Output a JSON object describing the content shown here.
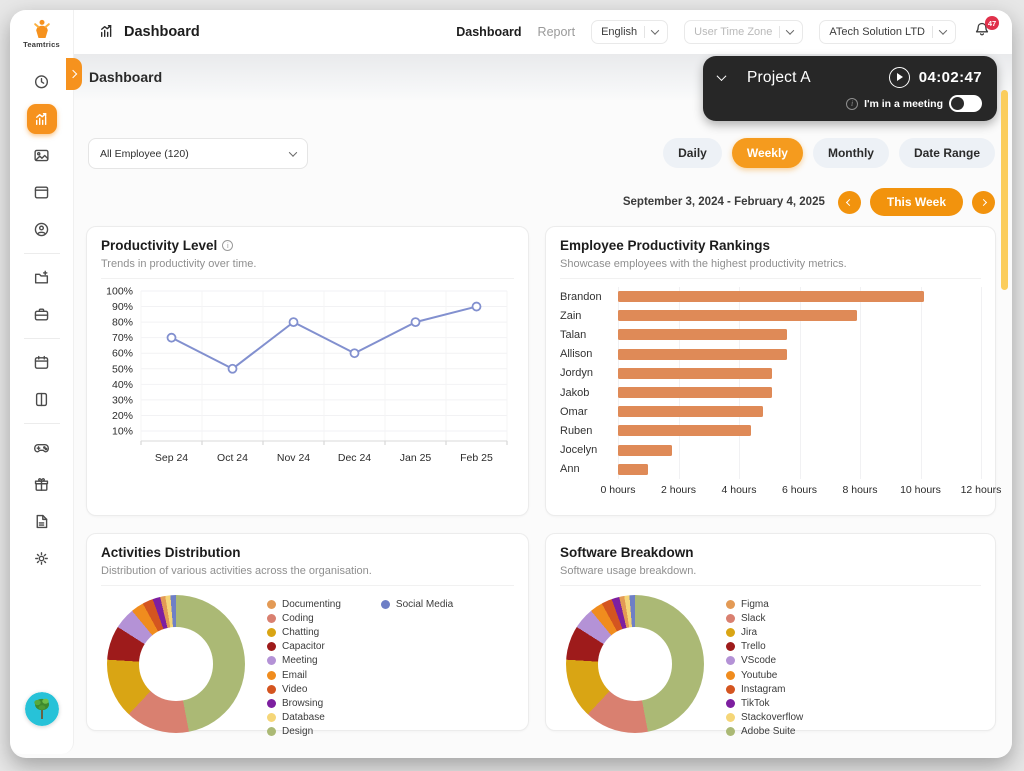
{
  "colors": {
    "accent": "#F6921E",
    "accent_dark": "#F2930D",
    "scrollbar": "#FBCD5C",
    "widget_bg": "#272727",
    "badge": "#E0314B"
  },
  "sidebar": {
    "logo": "Teamtrics",
    "items": [
      {
        "icon": "clock",
        "name": "time-tracking"
      },
      {
        "icon": "chart",
        "name": "dashboard",
        "active": true
      },
      {
        "icon": "image",
        "name": "screenshots"
      },
      {
        "icon": "window",
        "name": "apps-websites"
      },
      {
        "icon": "user",
        "name": "employees"
      },
      {
        "divider": true
      },
      {
        "icon": "folder-plus",
        "name": "projects"
      },
      {
        "icon": "briefcase",
        "name": "workspace"
      },
      {
        "divider": true
      },
      {
        "icon": "calendar",
        "name": "attendance"
      },
      {
        "icon": "tablet",
        "name": "devices"
      },
      {
        "divider": true
      },
      {
        "icon": "gamepad",
        "name": "games"
      },
      {
        "icon": "gift",
        "name": "rewards"
      },
      {
        "icon": "file",
        "name": "documents"
      },
      {
        "icon": "gear",
        "name": "settings"
      }
    ]
  },
  "header": {
    "app_title": "Dashboard",
    "nav_dashboard": "Dashboard",
    "nav_report": "Report",
    "language": "English",
    "timezone_placeholder": "User Time Zone",
    "company": "ATech Solution LTD",
    "notifications": "47"
  },
  "page": {
    "title": "Dashboard"
  },
  "timer": {
    "project": "Project A",
    "time": "04:02:47",
    "meeting": "I'm in a meeting",
    "meeting_on": true
  },
  "filters": {
    "employee": "All Employee (120)",
    "range_buttons": [
      {
        "label": "Daily",
        "active": false
      },
      {
        "label": "Weekly",
        "active": true
      },
      {
        "label": "Monthly",
        "active": false
      },
      {
        "label": "Date Range",
        "active": false
      }
    ],
    "date_range": "September 3, 2024 - February 4, 2025",
    "this_week": "This Week"
  },
  "panels": {
    "productivity": {
      "title": "Productivity Level",
      "subtitle": "Trends in productivity over time."
    },
    "rankings": {
      "title": "Employee Productivity Rankings",
      "subtitle": "Showcase employees with the highest productivity metrics."
    },
    "activities": {
      "title": "Activities Distribution",
      "subtitle": "Distribution of various activities across the organisation."
    },
    "software": {
      "title": "Software Breakdown",
      "subtitle": "Software usage breakdown."
    }
  },
  "chart_data": [
    {
      "id": "productivity_line",
      "type": "line",
      "title": "Productivity Level",
      "x": [
        "Sep 24",
        "Oct 24",
        "Nov 24",
        "Dec 24",
        "Jan 25",
        "Feb 25"
      ],
      "values": [
        70,
        50,
        80,
        60,
        80,
        90
      ],
      "yticks": [
        "100%",
        "90%",
        "80%",
        "70%",
        "60%",
        "50%",
        "40%",
        "30%",
        "20%",
        "10%"
      ],
      "ylim": [
        10,
        100
      ],
      "grid": true,
      "line_color": "#8290CF",
      "point_fill": "#ffffff"
    },
    {
      "id": "rankings_bar",
      "type": "bar",
      "orientation": "horizontal",
      "title": "Employee Productivity Rankings",
      "categories": [
        "Brandon",
        "Zain",
        "Talan",
        "Allison",
        "Jordyn",
        "Jakob",
        "Omar",
        "Ruben",
        "Jocelyn",
        "Ann"
      ],
      "values": [
        10.1,
        7.9,
        5.6,
        5.6,
        5.1,
        5.1,
        4.8,
        4.4,
        1.8,
        1.0
      ],
      "xticks": [
        "0 hours",
        "2 hours",
        "4 hours",
        "6 hours",
        "8 hours",
        "10 hours",
        "12 hours"
      ],
      "xlim": [
        0,
        12
      ],
      "grid": true,
      "bar_color": "#DF8A57"
    },
    {
      "id": "activities_pie",
      "type": "pie",
      "title": "Activities Distribution",
      "slices": [
        {
          "label": "Design",
          "value": 47,
          "color": "#ABB975"
        },
        {
          "label": "Coding",
          "value": 15,
          "color": "#D98070"
        },
        {
          "label": "Chatting",
          "value": 14,
          "color": "#D9A514"
        },
        {
          "label": "Capacitor",
          "value": 8,
          "color": "#9E1B1B"
        },
        {
          "label": "Meeting",
          "value": 5,
          "color": "#B492D6"
        },
        {
          "label": "Email",
          "value": 3,
          "color": "#F08C1E"
        },
        {
          "label": "Video",
          "value": 2.5,
          "color": "#D45520"
        },
        {
          "label": "Browsing",
          "value": 1.8,
          "color": "#7D1FA0"
        },
        {
          "label": "Documenting",
          "value": 1.2,
          "color": "#E39A55"
        },
        {
          "label": "Database",
          "value": 1.2,
          "color": "#F5D678"
        },
        {
          "label": "Social Media",
          "value": 1.3,
          "color": "#6E7FC6"
        }
      ],
      "legend_col1": [
        "Documenting",
        "Coding",
        "Chatting",
        "Capacitor",
        "Meeting",
        "Email",
        "Video",
        "Browsing",
        "Database",
        "Design"
      ],
      "legend_col2": [
        "Social Media"
      ]
    },
    {
      "id": "software_pie",
      "type": "pie",
      "title": "Software Breakdown",
      "slices": [
        {
          "label": "Adobe Suite",
          "value": 47,
          "color": "#ABB975"
        },
        {
          "label": "Slack",
          "value": 15,
          "color": "#D98070"
        },
        {
          "label": "Jira",
          "value": 14,
          "color": "#D9A514"
        },
        {
          "label": "Trello",
          "value": 8,
          "color": "#9E1B1B"
        },
        {
          "label": "VScode",
          "value": 5,
          "color": "#B492D6"
        },
        {
          "label": "Youtube",
          "value": 3,
          "color": "#F08C1E"
        },
        {
          "label": "Instagram",
          "value": 2.5,
          "color": "#D45520"
        },
        {
          "label": "TikTok",
          "value": 1.8,
          "color": "#7D1FA0"
        },
        {
          "label": "Figma",
          "value": 1.2,
          "color": "#E39A55"
        },
        {
          "label": "Stackoverflow",
          "value": 1.2,
          "color": "#F5D678"
        },
        {
          "label": "",
          "value": 1.3,
          "color": "#6E7FC6"
        }
      ],
      "legend_col1": [
        "Figma",
        "Slack",
        "Jira",
        "Trello",
        "VScode",
        "Youtube",
        "Instagram",
        "TikTok",
        "Stackoverflow",
        "Adobe Suite"
      ],
      "legend_col2": []
    }
  ]
}
